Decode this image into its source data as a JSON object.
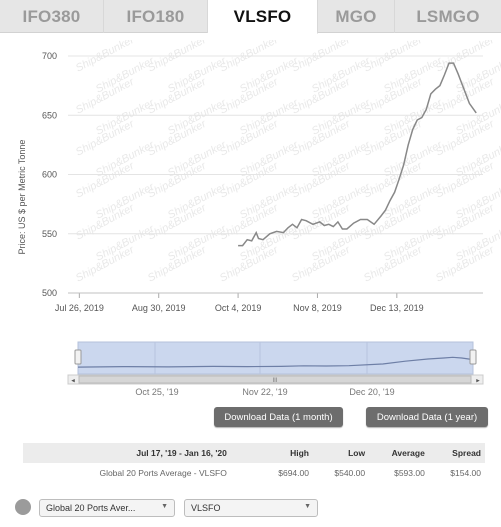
{
  "tabs": [
    {
      "label": "IFO380",
      "active": false
    },
    {
      "label": "IFO180",
      "active": false
    },
    {
      "label": "VLSFO",
      "active": true
    },
    {
      "label": "MGO",
      "active": false
    },
    {
      "label": "LSMGO",
      "active": false
    }
  ],
  "watermark": "Ship&Bunker",
  "chart_data": {
    "type": "line",
    "ylabel": "Price: US $ per Metric Tonne",
    "ylim": [
      500,
      700
    ],
    "yticks": [
      "500",
      "550",
      "600",
      "650",
      "700"
    ],
    "xticks": [
      "Jul 26, 2019",
      "Aug 30, 2019",
      "Oct 4, 2019",
      "Nov 8, 2019",
      "Dec 13, 2019"
    ],
    "xlim_days": [
      -5,
      178
    ],
    "series": [
      {
        "name": "",
        "color": "#888888",
        "points": [
          [
            70,
            540
          ],
          [
            72,
            540
          ],
          [
            74,
            545
          ],
          [
            76,
            544
          ],
          [
            78,
            551
          ],
          [
            79,
            546
          ],
          [
            81,
            545
          ],
          [
            84,
            550
          ],
          [
            87,
            552
          ],
          [
            90,
            551
          ],
          [
            92,
            555
          ],
          [
            94,
            558
          ],
          [
            96,
            555
          ],
          [
            98,
            562
          ],
          [
            100,
            561
          ],
          [
            103,
            558
          ],
          [
            106,
            560
          ],
          [
            108,
            557
          ],
          [
            110,
            558
          ],
          [
            112,
            556
          ],
          [
            114,
            560
          ],
          [
            116,
            554
          ],
          [
            118,
            554
          ],
          [
            121,
            559
          ],
          [
            124,
            562
          ],
          [
            127,
            562
          ],
          [
            130,
            558
          ],
          [
            133,
            565
          ],
          [
            135,
            570
          ],
          [
            137,
            578
          ],
          [
            139,
            585
          ],
          [
            141,
            596
          ],
          [
            143,
            608
          ],
          [
            145,
            625
          ],
          [
            147,
            638
          ],
          [
            149,
            646
          ],
          [
            151,
            648
          ],
          [
            153,
            655
          ],
          [
            155,
            668
          ],
          [
            157,
            672
          ],
          [
            159,
            675
          ],
          [
            161,
            684
          ],
          [
            163,
            694
          ],
          [
            165,
            694
          ],
          [
            167,
            685
          ],
          [
            169,
            675
          ],
          [
            172,
            660
          ],
          [
            175,
            652
          ]
        ]
      }
    ]
  },
  "navigator": {
    "labels": [
      "Oct 25, '19",
      "Nov 22, '19",
      "Dec 20, '19"
    ],
    "scroll_left": "◂",
    "scroll_right": "▸",
    "grip": "III"
  },
  "buttons": {
    "download_month": "Download Data (1 month)",
    "download_year": "Download Data (1 year)"
  },
  "stats": {
    "headers": [
      "Jul 17, '19 - Jan 16, '20",
      "High",
      "Low",
      "Average",
      "Spread"
    ],
    "row": [
      "Global 20 Ports Average - VLSFO",
      "$694.00",
      "$540.00",
      "$593.00",
      "$154.00"
    ]
  },
  "selects": {
    "port": "Global 20 Ports Aver...",
    "grade": "VLSFO",
    "arrow": "▼"
  }
}
